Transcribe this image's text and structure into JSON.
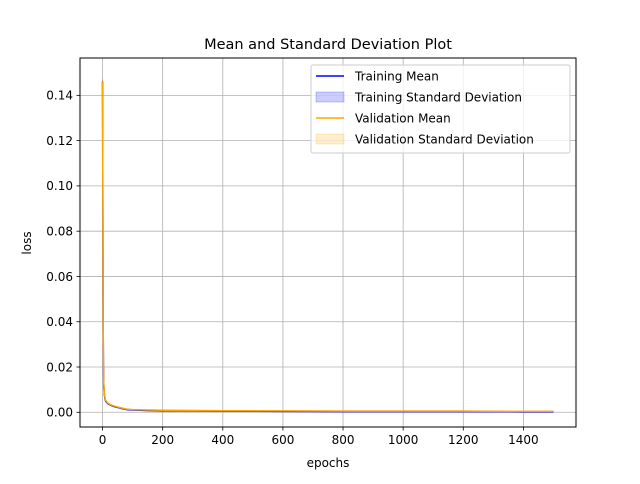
{
  "chart_data": {
    "type": "line",
    "title": "Mean and Standard Deviation Plot",
    "xlabel": "epochs",
    "ylabel": "loss",
    "xlim": [
      -75,
      1575
    ],
    "ylim": [
      -0.0065,
      0.1565
    ],
    "xticks": [
      0,
      200,
      400,
      600,
      800,
      1000,
      1200,
      1400
    ],
    "xtick_labels": [
      "0",
      "200",
      "400",
      "600",
      "800",
      "1000",
      "1200",
      "1400"
    ],
    "yticks": [
      0.0,
      0.02,
      0.04,
      0.06,
      0.08,
      0.1,
      0.12,
      0.14
    ],
    "ytick_labels": [
      "0.00",
      "0.02",
      "0.04",
      "0.06",
      "0.08",
      "0.10",
      "0.12",
      "0.14"
    ],
    "grid": true,
    "legend_position": "top-right",
    "series": [
      {
        "name": "Training Mean",
        "kind": "line",
        "color": "#0000ff",
        "x": [
          0,
          1,
          2,
          3,
          4,
          6,
          8,
          10,
          15,
          20,
          30,
          40,
          60,
          80,
          100,
          150,
          200,
          300,
          400,
          600,
          800,
          1000,
          1200,
          1400,
          1500
        ],
        "y": [
          0.146,
          0.09,
          0.04,
          0.02,
          0.012,
          0.008,
          0.006,
          0.005,
          0.0042,
          0.0036,
          0.003,
          0.0025,
          0.0018,
          0.0012,
          0.001,
          0.0008,
          0.0007,
          0.0006,
          0.0005,
          0.0004,
          0.0003,
          0.0003,
          0.0003,
          0.0002,
          0.0002
        ]
      },
      {
        "name": "Validation Mean",
        "kind": "line",
        "color": "#ffa500",
        "x": [
          0,
          1,
          2,
          3,
          4,
          6,
          8,
          10,
          15,
          20,
          30,
          40,
          60,
          80,
          100,
          150,
          200,
          300,
          400,
          600,
          800,
          1000,
          1200,
          1400,
          1500
        ],
        "y": [
          0.146,
          0.092,
          0.042,
          0.021,
          0.013,
          0.0085,
          0.0065,
          0.0053,
          0.0045,
          0.0038,
          0.0032,
          0.0027,
          0.002,
          0.0014,
          0.0012,
          0.001,
          0.0009,
          0.0008,
          0.0007,
          0.0006,
          0.0005,
          0.0005,
          0.0005,
          0.0004,
          0.0004
        ]
      }
    ],
    "bands": [
      {
        "name": "Training Standard Deviation",
        "kind": "fill",
        "color": "#0000ff",
        "alpha": 0.2,
        "x": [
          0,
          1,
          2,
          3,
          4,
          6,
          8,
          10,
          15,
          20,
          30,
          40,
          60,
          80,
          100,
          150,
          200,
          300,
          400,
          600,
          800,
          1000,
          1200,
          1400,
          1500
        ],
        "lower": [
          0.145,
          0.089,
          0.0395,
          0.0197,
          0.0118,
          0.0079,
          0.0059,
          0.0049,
          0.0041,
          0.0035,
          0.0029,
          0.0024,
          0.0017,
          0.0011,
          0.0009,
          0.0007,
          0.0006,
          0.0005,
          0.0004,
          0.0003,
          0.0002,
          0.0002,
          0.0002,
          0.0001,
          0.0001
        ],
        "upper": [
          0.147,
          0.091,
          0.0405,
          0.0203,
          0.0122,
          0.0081,
          0.0061,
          0.0051,
          0.0043,
          0.0037,
          0.0031,
          0.0026,
          0.0019,
          0.0013,
          0.0011,
          0.0009,
          0.0008,
          0.0007,
          0.0006,
          0.0005,
          0.0004,
          0.0004,
          0.0004,
          0.0003,
          0.0003
        ]
      },
      {
        "name": "Validation Standard Deviation",
        "kind": "fill",
        "color": "#ffa500",
        "alpha": 0.2,
        "x": [
          0,
          1,
          2,
          3,
          4,
          6,
          8,
          10,
          15,
          20,
          30,
          40,
          60,
          80,
          100,
          150,
          200,
          300,
          400,
          600,
          800,
          1000,
          1200,
          1400,
          1500
        ],
        "lower": [
          0.145,
          0.091,
          0.0415,
          0.0207,
          0.0128,
          0.0083,
          0.0063,
          0.0051,
          0.0043,
          0.0036,
          0.003,
          0.0025,
          0.0018,
          0.0012,
          0.001,
          0.0008,
          0.0007,
          0.0006,
          0.0005,
          0.0004,
          0.0003,
          0.0003,
          0.0003,
          0.0002,
          0.0002
        ],
        "upper": [
          0.147,
          0.093,
          0.0425,
          0.0213,
          0.0132,
          0.0087,
          0.0067,
          0.0055,
          0.0047,
          0.004,
          0.0034,
          0.0029,
          0.0022,
          0.0016,
          0.0014,
          0.0012,
          0.0011,
          0.001,
          0.0009,
          0.0008,
          0.0007,
          0.0007,
          0.0007,
          0.0006,
          0.0006
        ]
      }
    ],
    "legend": [
      {
        "label": "Training Mean",
        "kind": "line",
        "color": "#0000ff"
      },
      {
        "label": "Training Standard Deviation",
        "kind": "patch",
        "color": "#0000ff"
      },
      {
        "label": "Validation Mean",
        "kind": "line",
        "color": "#ffa500"
      },
      {
        "label": "Validation Standard Deviation",
        "kind": "patch",
        "color": "#ffa500"
      }
    ],
    "colors": {
      "grid": "#b0b0b0",
      "axes": "#000000",
      "legend_border": "#cccccc"
    }
  }
}
